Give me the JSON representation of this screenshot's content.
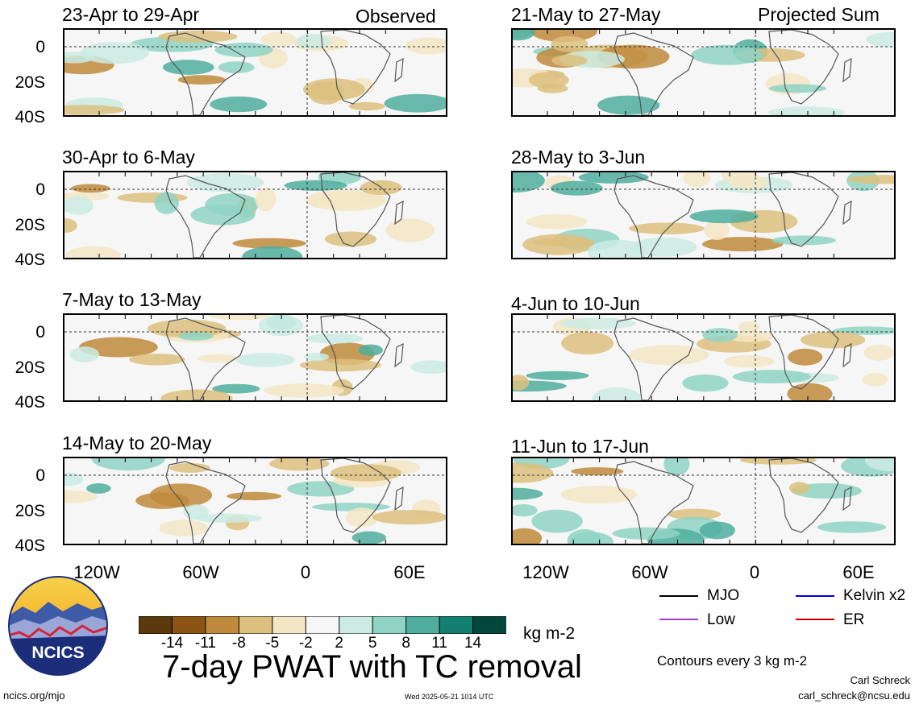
{
  "panels_left": [
    {
      "title": "23-Apr to 29-Apr",
      "tag": "Observed"
    },
    {
      "title": "30-Apr to 6-May",
      "tag": ""
    },
    {
      "title": "7-May to 13-May",
      "tag": ""
    },
    {
      "title": "14-May to 20-May",
      "tag": ""
    }
  ],
  "panels_right": [
    {
      "title": "21-May to 27-May",
      "tag": "Projected Sum"
    },
    {
      "title": "28-May to 3-Jun",
      "tag": ""
    },
    {
      "title": "4-Jun to 10-Jun",
      "tag": ""
    },
    {
      "title": "11-Jun to 17-Jun",
      "tag": ""
    }
  ],
  "lat_labels": [
    "0",
    "20S",
    "40S"
  ],
  "lon_labels": [
    "120W",
    "60W",
    "0",
    "60E"
  ],
  "colorbar": {
    "colors": [
      "#5a3a0c",
      "#8c5414",
      "#c08a3c",
      "#dcc07e",
      "#f3e6c4",
      "#f6f6f6",
      "#cbebe3",
      "#8fd3c4",
      "#4fae9e",
      "#137f70",
      "#03483d"
    ],
    "ticks": [
      "-14",
      "-11",
      "-8",
      "-5",
      "-2",
      "2",
      "5",
      "8",
      "11",
      "14"
    ],
    "units": "kg m-2"
  },
  "main_title": "7-day PWAT with TC removal",
  "legend": [
    {
      "label": "MJO",
      "color": "#000000"
    },
    {
      "label": "Kelvin x2",
      "color": "#0000cc"
    },
    {
      "label": "Low",
      "color": "#a040d0"
    },
    {
      "label": "ER",
      "color": "#d00000"
    }
  ],
  "contours_note": "Contours every 3 kg m-2",
  "author": "Carl Schreck",
  "email": "carl_schreck@ncsu.edu",
  "site": "ncics.org/mjo",
  "timestamp": "Wed 2025-05-21 1014 UTC",
  "logo_text": "NCICS"
}
